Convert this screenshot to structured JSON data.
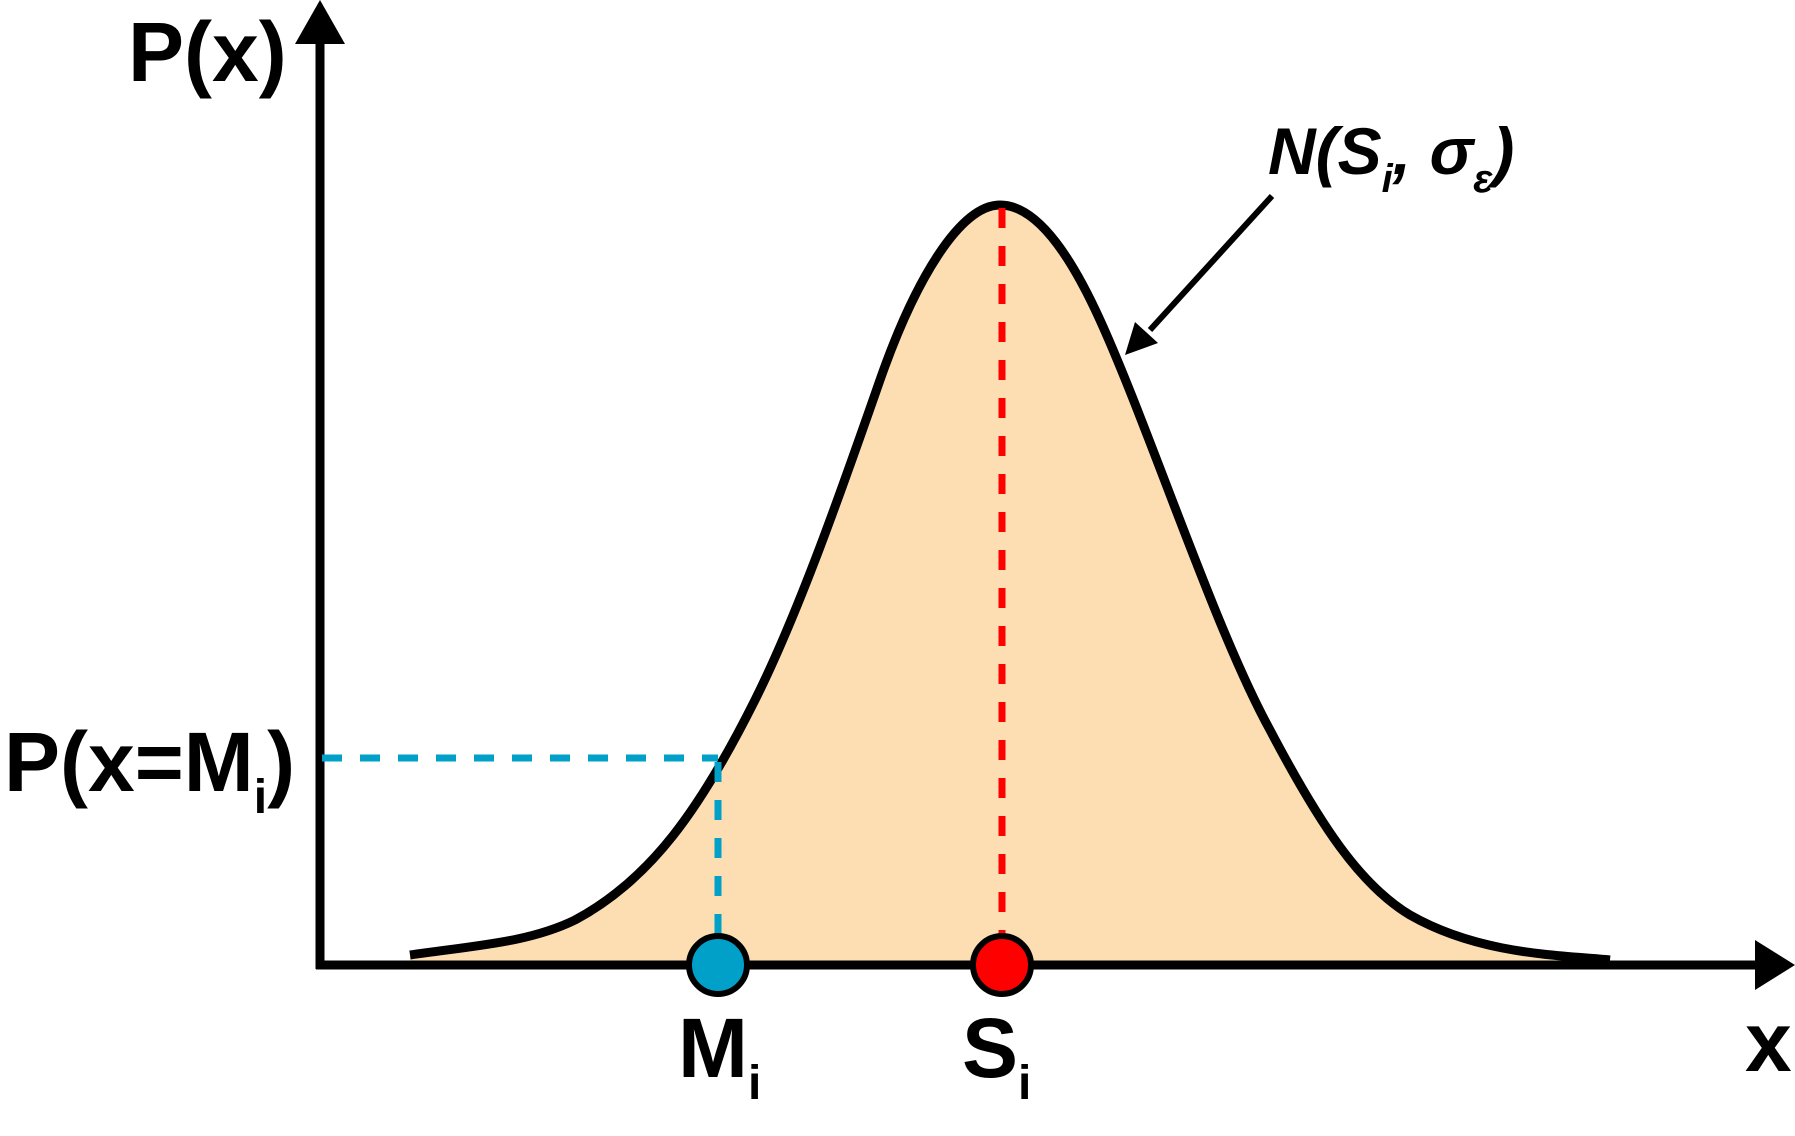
{
  "y_axis_label": "P(x)",
  "x_axis_label": "x",
  "probability_label": {
    "main": "P(x=M",
    "subscript": "i",
    "close": ")"
  },
  "measured_point": {
    "label": "M",
    "subscript": "i",
    "color": "#00a0c8"
  },
  "source_point": {
    "label": "S",
    "subscript": "i",
    "color": "#ff0000"
  },
  "distribution_label": {
    "prefix": "N(S",
    "sub_i": "i",
    "middle": ", σ",
    "sub_eps": "ε",
    "close": ")"
  },
  "colors": {
    "curve_fill": "#fddeb3",
    "curve_stroke": "#000000",
    "source_guide": "#ff0000",
    "measured_guide": "#00a0c8"
  }
}
